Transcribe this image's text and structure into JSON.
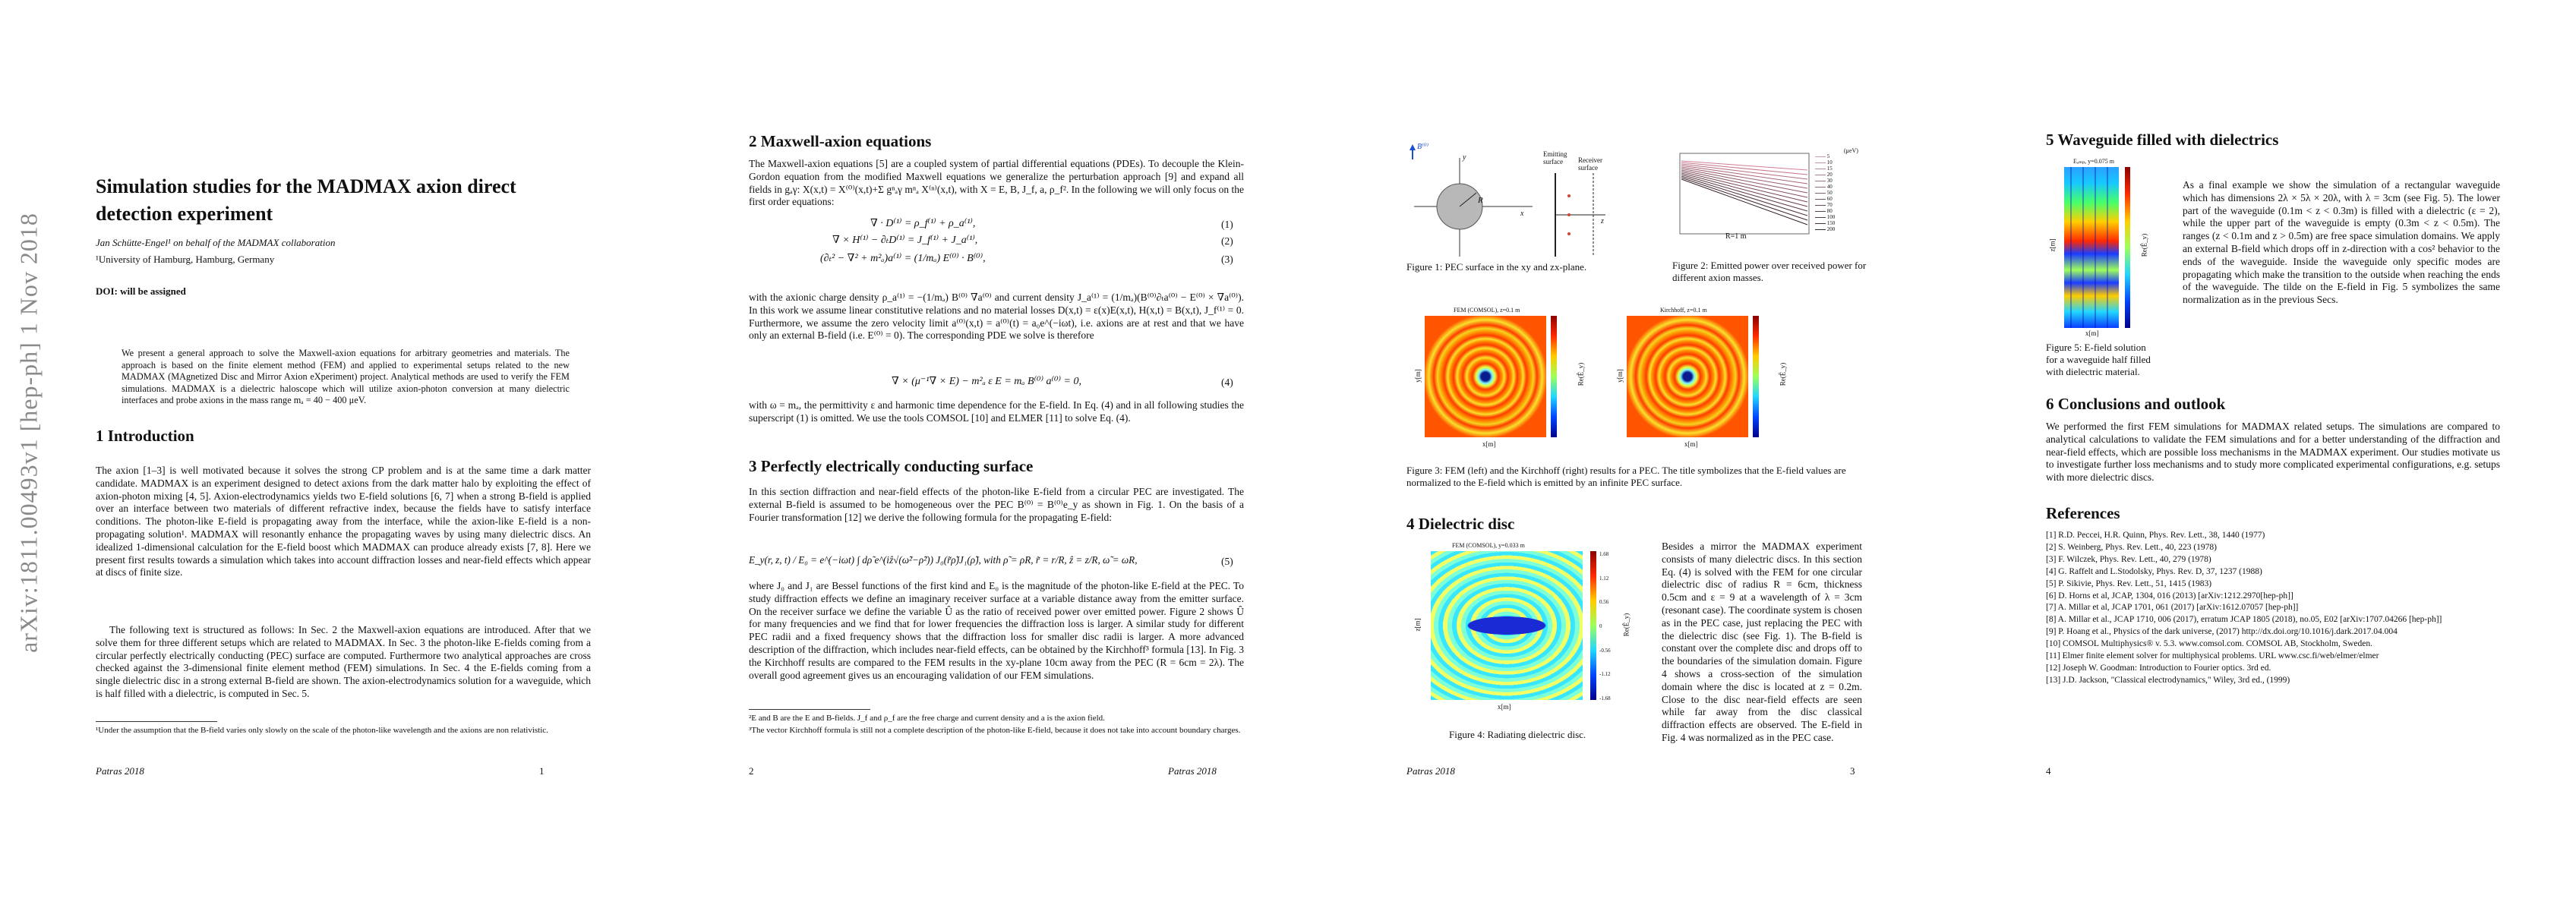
{
  "arxiv_stamp": "arXiv:1811.00493v1  [hep-ph]  1 Nov 2018",
  "page1": {
    "title": "Simulation studies for the MADMAX axion direct detection experiment",
    "authors": "Jan Schütte-Engel¹ on behalf of the MADMAX collaboration",
    "affiliation": "¹University of Hamburg, Hamburg, Germany",
    "doi": "DOI: will be assigned",
    "abstract": "We present a general approach to solve the Maxwell-axion equations for arbitrary geometries and materials. The approach is based on the finite element method (FEM) and applied to experimental setups related to the new MADMAX (MAgnetized Disc and Mirror Axion eXperiment) project. Analytical methods are used to verify the FEM simulations. MADMAX is a dielectric haloscope which will utilize axion-photon conversion at many dielectric interfaces and probe axions in the mass range mₐ = 40 − 400 μeV.",
    "sec1_title": "1   Introduction",
    "intro_p1": "The axion [1–3] is well motivated because it solves the strong CP problem and is at the same time a dark matter candidate. MADMAX is an experiment designed to detect axions from the dark matter halo by exploiting the effect of axion-photon mixing [4, 5]. Axion-electrodynamics yields two E-field solutions [6, 7] when a strong B-field is applied over an interface between two materials of different refractive index, because the fields have to satisfy interface conditions. The photon-like E-field is propagating away from the interface, while the axion-like E-field is a non-propagating solution¹. MADMAX will resonantly enhance the propagating waves by using many dielectric discs. An idealized 1-dimensional calculation for the E-field boost which MADMAX can produce already exists [7, 8]. Here we present first results towards a simulation which takes into account diffraction losses and near-field effects which appear at discs of finite size.",
    "intro_p2": "The following text is structured as follows: In Sec. 2 the Maxwell-axion equations are introduced. After that we solve them for three different setups which are related to MADMAX. In Sec. 3 the photon-like E-fields coming from a circular perfectly electrically conducting (PEC) surface are computed. Furthermore two analytical approaches are cross checked against the 3-dimensional finite element method (FEM) simulations. In Sec. 4 the E-fields coming from a single dielectric disc in a strong external B-field are shown. The axion-electrodynamics solution for a waveguide, which is half filled with a dielectric, is computed in Sec. 5.",
    "footnote": "¹Under the assumption that the B-field varies only slowly on the scale of the photon-like wavelength and the axions are non relativistic.",
    "footer": "Patras 2018",
    "page_number": "1"
  },
  "page2": {
    "sec2_title": "2   Maxwell-axion equations",
    "sec2_p1": "The Maxwell-axion equations [5] are a coupled system of partial differential equations (PDEs). To decouple the Klein-Gordon equation from the modified Maxwell equations we generalize the perturbation approach [9] and expand all fields in gₐγ: X(x,t) = X⁽⁰⁾(x,t)+Σ gⁿₐγ mⁿₐ X⁽ⁿ⁾(x,t), with X = E, B, J_f, a, ρ_f². In the following we will only focus on the first order equations:",
    "eq1": "∇ · D⁽¹⁾  =  ρ_f⁽¹⁾ + ρ_a⁽¹⁾,",
    "eq2": "∇ × H⁽¹⁾ − ∂ₜD⁽¹⁾  =  J_f⁽¹⁾ + J_a⁽¹⁾,",
    "eq3": "(∂ₜ² − ∇² + m²ₐ)a⁽¹⁾  =  (1/mₐ) E⁽⁰⁾ · B⁽⁰⁾,",
    "eq_nums": [
      "(1)",
      "(2)",
      "(3)",
      "(4)",
      "(5)"
    ],
    "sec2_p2": "with the axionic charge density ρ_a⁽¹⁾ = −(1/mₐ) B⁽⁰⁾ ∇a⁽⁰⁾ and current density J_a⁽¹⁾ = (1/mₐ)(B⁽⁰⁾∂ₜa⁽⁰⁾ − E⁽⁰⁾ × ∇a⁽⁰⁾). In this work we assume linear constitutive relations and no material losses D(x,t) = ε(x)E(x,t), H(x,t) = B(x,t), J_f⁽¹⁾ = 0. Furthermore, we assume the zero velocity limit a⁽⁰⁾(x,t) = a⁽⁰⁾(t) = a₀e^(−iωt), i.e. axions are at rest and that we have only an external B-field (i.e. E⁽⁰⁾ = 0). The corresponding PDE we solve is therefore",
    "eq4": "∇ × (μ⁻¹∇ × E) − m²ₐ ε E = mₐ B⁽⁰⁾ a⁽⁰⁾ = 0,",
    "sec2_p3": "with ω = mₐ, the permittivity ε and harmonic time dependence for the E-field. In Eq. (4) and in all following studies the superscript (1) is omitted. We use the tools COMSOL [10] and ELMER [11] to solve Eq. (4).",
    "sec3_title": "3   Perfectly electrically conducting surface",
    "sec3_p1": "In this section diffraction and near-field effects of the photon-like E-field from a circular PEC are investigated. The external B-field is assumed to be homogeneous over the PEC B⁽⁰⁾ = B⁽⁰⁾e_y as shown in Fig. 1. On the basis of a Fourier transformation [12] we derive the following formula for the propagating E-field:",
    "eq5": "E_y(r, z, t) / E₀ = e^(−iωt) ∫ dρ̃ e^(iẑ√(ω̃²−ρ̃²)) J₀(r̃ρ̃)J₁(ρ̃),     with  ρ̃ = ρR, r̃ = r/R, ẑ = z/R, ω̃ = ωR,",
    "sec3_p2": "where J₀ and J₁ are Bessel functions of the first kind and E₀ is the magnitude of the photon-like E-field at the PEC. To study diffraction effects we define an imaginary receiver surface at a variable distance away from the emitter surface. On the receiver surface we define the variable Û as the ratio of received power over emitted power. Figure 2 shows Û for many frequencies and we find that for lower frequencies the diffraction loss is larger. A similar study for different PEC radii and a fixed frequency shows that the diffraction loss for smaller disc radii is larger. A more advanced description of the diffraction, which includes near-field effects, can be obtained by the Kirchhoff³ formula [13]. In Fig. 3 the Kirchhoff results are compared to the FEM results in the xy-plane 10cm away from the PEC (R = 6cm = 2λ). The overall good agreement gives us an encouraging validation of our FEM simulations.",
    "footnote1": "²E and B are the E and B-fields. J_f and ρ_f are the free charge and current density and a is the axion field.",
    "footnote2": "³The vector Kirchhoff formula is still not a complete description of the photon-like E-field, because it does not take into account boundary charges.",
    "page_number": "2",
    "footer": "Patras 2018"
  },
  "page3": {
    "fig1_caption": "Figure 1: PEC surface in the xy and zx-plane.",
    "fig1_labels": {
      "emitting": "Emitting surface",
      "receiver": "Receiver surface",
      "B": "B⁽⁰⁾",
      "x": "x",
      "y": "y",
      "z": "z",
      "R": "R"
    },
    "fig2_caption": "Figure 2: Emitted power over received power for different axion masses.",
    "fig2_xlabel": "R=1 m",
    "fig2_legend_title": "(μeV)",
    "fig2_legend": [
      "5",
      "10",
      "15",
      "20",
      "30",
      "40",
      "50",
      "60",
      "70",
      "80",
      "100",
      "150",
      "200"
    ],
    "fig3_left_title": "FEM (COMSOL), z=0.1 m",
    "fig3_right_title": "Kirchhoff, z=0.1 m",
    "fig3_caption": "Figure 3: FEM (left) and the Kirchhoff (right) results for a PEC. The title symbolizes that the E-field values are normalized to the E-field which is emitted by an infinite PEC surface.",
    "fig3_xlabel": "x[m]",
    "fig3_ylabel": "y[m]",
    "fig3_cbar_label": "Re(Ê_y)",
    "fig3_cbar_ticks": [
      "0.8",
      "0.6",
      "0.4",
      "0.2",
      "0",
      "-0.2",
      "-0.4",
      "-0.6",
      "-0.8"
    ],
    "sec4_title": "4   Dielectric disc",
    "fig4_title": "FEM (COMSOL), y=0.033 m",
    "fig4_caption": "Figure 4: Radiating dielectric disc.",
    "fig4_xlabel": "x[m]",
    "fig4_ylabel": "z[m]",
    "fig4_cbar_label": "Re(Ê_y)",
    "fig4_cbar_ticks": [
      "1.68",
      "1.12",
      "0.56",
      "0",
      "-0.56",
      "-1.12",
      "-1.68"
    ],
    "sec4_p1": "Besides a mirror the MADMAX experiment consists of many dielectric discs. In this section Eq. (4) is solved with the FEM for one circular dielectric disc of radius R = 6cm, thickness 0.5cm and ε = 9 at a wavelength of λ = 3cm (resonant case). The coordinate system is chosen as in the PEC case, just replacing the PEC with the dielectric disc (see Fig. 1). The B-field is constant over the complete disc and drops off to the boundaries of the simulation domain. Figure 4 shows a cross-section of the simulation domain where the disc is located at z = 0.2m. Close to the disc near-field effects are seen while far away from the disc classical diffraction effects are observed. The E-field in Fig. 4 was normalized as in the PEC case.",
    "footer": "Patras 2018",
    "page_number": "3"
  },
  "page4": {
    "sec5_title": "5   Waveguide filled with dielectrics",
    "fig5_title": "Eₐₘₚ, y=0.075 m",
    "fig5_caption": "Figure 5: E-field solution for a waveguide half filled with dielectric material.",
    "fig5_xlabel": "x[m]",
    "fig5_ylabel": "z[m]",
    "fig5_cbar_label": "Re(Ê_y)",
    "sec5_p1": "As a final example we show the simulation of a rectangular waveguide which has dimensions 2λ × 5λ × 20λ, with λ = 3cm (see Fig. 5). The lower part of the waveguide (0.1m < z < 0.3m) is filled with a dielectric (ε = 2), while the upper part of the waveguide is empty (0.3m < z < 0.5m). The ranges (z < 0.1m and z > 0.5m) are free space simulation domains. We apply an external B-field which drops off in z-direction with a cos² behavior to the ends of the waveguide. Inside the waveguide only specific modes are propagating which make the transition to the outside when reaching the ends of the waveguide. The tilde on the E-field in Fig. 5 symbolizes the same normalization as in the previous Secs.",
    "sec6_title": "6   Conclusions and outlook",
    "sec6_p1": "We performed the first FEM simulations for MADMAX related setups. The simulations are compared to analytical calculations to validate the FEM simulations and for a better understanding of the diffraction and near-field effects, which are possible loss mechanisms in the MADMAX experiment. Our studies motivate us to investigate further loss mechanisms and to study more complicated experimental configurations, e.g. setups with more dielectric discs.",
    "refs_title": "References",
    "references": [
      "[1]  R.D. Peccei, H.R. Quinn, Phys. Rev. Lett., 38, 1440 (1977)",
      "[2]  S. Weinberg, Phys. Rev. Lett., 40, 223 (1978)",
      "[3]  F. Wilczek, Phys. Rev. Lett., 40, 279 (1978)",
      "[4]  G. Raffelt and L.Stodolsky, Phys. Rev. D, 37, 1237 (1988)",
      "[5]  P. Sikivie, Phys. Rev. Lett., 51, 1415 (1983)",
      "[6]  D. Horns et al, JCAP, 1304, 016 (2013) [arXiv:1212.2970[hep-ph]]",
      "[7]  A. Millar et al, JCAP 1701, 061 (2017) [arXiv:1612.07057 [hep-ph]]",
      "[8]  A. Millar et al., JCAP 1710, 006 (2017), erratum JCAP 1805 (2018), no.05, E02 [arXiv:1707.04266 [hep-ph]]",
      "[9]  P. Hoang et al., Physics of the dark universe, (2017) http://dx.doi.org/10.1016/j.dark.2017.04.004",
      "[10]  COMSOL Multiphysics® v. 5.3. www.comsol.com. COMSOL AB, Stockholm, Sweden.",
      "[11]  Elmer finite element solver for multiphysical problems. URL www.csc.fi/web/elmer/elmer",
      "[12]  Joseph W. Goodman: Introduction to Fourier optics. 3rd ed.",
      "[13]  J.D. Jackson, \"Classical electrodynamics,\" Wiley, 3rd ed., (1999)"
    ],
    "page_number": "4"
  }
}
